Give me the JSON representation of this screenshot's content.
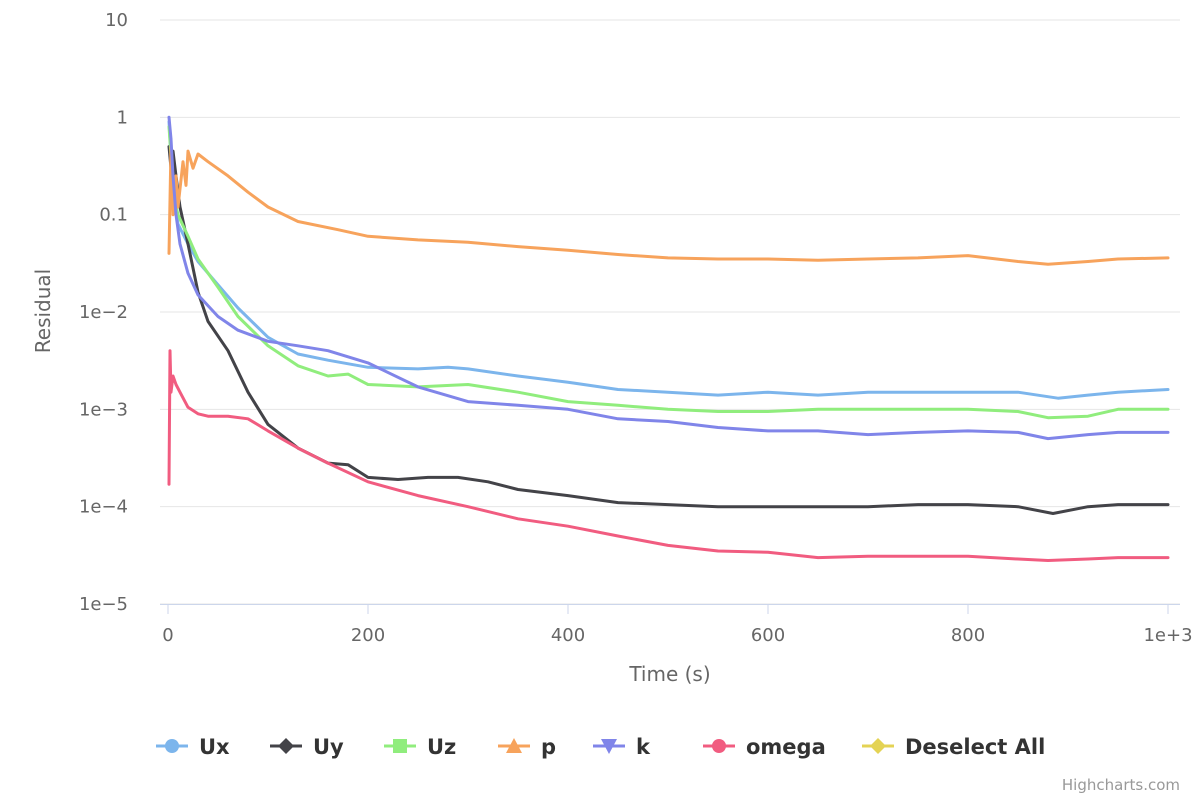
{
  "chart_data": {
    "type": "line",
    "xlabel": "Time (s)",
    "ylabel": "Residual",
    "xlim": [
      0,
      1000
    ],
    "ylim": [
      1e-05,
      10
    ],
    "y_scale": "log",
    "grid": true,
    "legend_position": "bottom",
    "x_ticks": [
      "0",
      "200",
      "400",
      "600",
      "800",
      "1e+3"
    ],
    "y_ticks": [
      "10",
      "1",
      "0.1",
      "1e−2",
      "1e−3",
      "1e−4",
      "1e−5"
    ],
    "series": [
      {
        "name": "Ux",
        "color": "#7cb5ec",
        "marker": "circle",
        "x": [
          1,
          3,
          6,
          10,
          20,
          30,
          50,
          70,
          100,
          130,
          160,
          200,
          250,
          280,
          300,
          350,
          400,
          450,
          500,
          550,
          600,
          650,
          700,
          750,
          800,
          850,
          890,
          920,
          950,
          1000
        ],
        "y": [
          0.9,
          0.4,
          0.15,
          0.08,
          0.05,
          0.033,
          0.019,
          0.011,
          0.0055,
          0.0037,
          0.0032,
          0.0027,
          0.0026,
          0.0027,
          0.0026,
          0.0022,
          0.0019,
          0.0016,
          0.0015,
          0.0014,
          0.0015,
          0.0014,
          0.0015,
          0.0015,
          0.0015,
          0.0015,
          0.0013,
          0.0014,
          0.0015,
          0.0016
        ]
      },
      {
        "name": "Uy",
        "color": "#434348",
        "marker": "diamond",
        "x": [
          1,
          3,
          5,
          8,
          12,
          20,
          30,
          40,
          60,
          80,
          100,
          130,
          160,
          180,
          200,
          230,
          260,
          290,
          320,
          350,
          400,
          450,
          500,
          550,
          600,
          650,
          700,
          750,
          800,
          850,
          885,
          920,
          950,
          1000
        ],
        "y": [
          0.5,
          0.3,
          0.45,
          0.25,
          0.12,
          0.05,
          0.016,
          0.008,
          0.004,
          0.0015,
          0.0007,
          0.0004,
          0.00028,
          0.00027,
          0.0002,
          0.00019,
          0.0002,
          0.0002,
          0.00018,
          0.00015,
          0.00013,
          0.00011,
          0.000105,
          0.0001,
          0.0001,
          0.0001,
          0.0001,
          0.000105,
          0.000105,
          0.0001,
          8.5e-05,
          0.0001,
          0.000105,
          0.000105
        ]
      },
      {
        "name": "Uz",
        "color": "#90ed7d",
        "marker": "square",
        "x": [
          1,
          3,
          6,
          10,
          20,
          30,
          50,
          70,
          100,
          130,
          160,
          180,
          200,
          250,
          300,
          350,
          400,
          450,
          500,
          550,
          600,
          650,
          700,
          750,
          800,
          850,
          880,
          920,
          950,
          1000
        ],
        "y": [
          0.8,
          0.4,
          0.15,
          0.1,
          0.06,
          0.035,
          0.018,
          0.009,
          0.0045,
          0.0028,
          0.0022,
          0.0023,
          0.0018,
          0.0017,
          0.0018,
          0.0015,
          0.0012,
          0.0011,
          0.001,
          0.00095,
          0.00095,
          0.001,
          0.001,
          0.001,
          0.001,
          0.00095,
          0.00082,
          0.00085,
          0.001,
          0.001
        ]
      },
      {
        "name": "p",
        "color": "#f7a35c",
        "marker": "triangle",
        "x": [
          1,
          3,
          5,
          8,
          10,
          15,
          18,
          20,
          25,
          30,
          40,
          60,
          80,
          100,
          130,
          170,
          200,
          250,
          300,
          350,
          400,
          450,
          500,
          550,
          600,
          650,
          700,
          750,
          800,
          850,
          880,
          920,
          950,
          1000
        ],
        "y": [
          0.04,
          0.5,
          0.1,
          0.25,
          0.12,
          0.35,
          0.2,
          0.45,
          0.3,
          0.42,
          0.35,
          0.25,
          0.17,
          0.12,
          0.085,
          0.07,
          0.06,
          0.055,
          0.052,
          0.047,
          0.043,
          0.039,
          0.036,
          0.035,
          0.035,
          0.034,
          0.035,
          0.036,
          0.038,
          0.033,
          0.031,
          0.033,
          0.035,
          0.036
        ]
      },
      {
        "name": "k",
        "color": "#8085e9",
        "marker": "triangle-down",
        "x": [
          1,
          3,
          5,
          8,
          12,
          20,
          30,
          50,
          70,
          100,
          130,
          160,
          200,
          250,
          300,
          350,
          400,
          450,
          500,
          550,
          600,
          650,
          700,
          750,
          800,
          850,
          880,
          920,
          950,
          1000
        ],
        "y": [
          1.0,
          0.6,
          0.25,
          0.1,
          0.05,
          0.025,
          0.015,
          0.009,
          0.0065,
          0.005,
          0.0045,
          0.004,
          0.003,
          0.0017,
          0.0012,
          0.0011,
          0.001,
          0.0008,
          0.00075,
          0.00065,
          0.0006,
          0.0006,
          0.00055,
          0.00058,
          0.0006,
          0.00058,
          0.0005,
          0.00055,
          0.00058,
          0.00058
        ]
      },
      {
        "name": "omega",
        "color": "#f15c80",
        "marker": "circle",
        "x": [
          1,
          2,
          3,
          5,
          8,
          12,
          20,
          30,
          40,
          60,
          80,
          100,
          130,
          160,
          200,
          250,
          300,
          350,
          400,
          450,
          500,
          550,
          600,
          650,
          700,
          750,
          800,
          850,
          880,
          920,
          950,
          1000
        ],
        "y": [
          0.00017,
          0.004,
          0.0015,
          0.0022,
          0.0018,
          0.0015,
          0.00105,
          0.0009,
          0.00085,
          0.00085,
          0.0008,
          0.0006,
          0.0004,
          0.00028,
          0.00018,
          0.00013,
          0.0001,
          7.5e-05,
          6.3e-05,
          5e-05,
          4e-05,
          3.5e-05,
          3.4e-05,
          3e-05,
          3.1e-05,
          3.1e-05,
          3.1e-05,
          2.9e-05,
          2.8e-05,
          2.9e-05,
          3e-05,
          3e-05
        ]
      }
    ],
    "extra_legend_items": [
      {
        "name": "Deselect All",
        "color": "#e4d354",
        "marker": "diamond"
      }
    ]
  },
  "credits": "Highcharts.com"
}
